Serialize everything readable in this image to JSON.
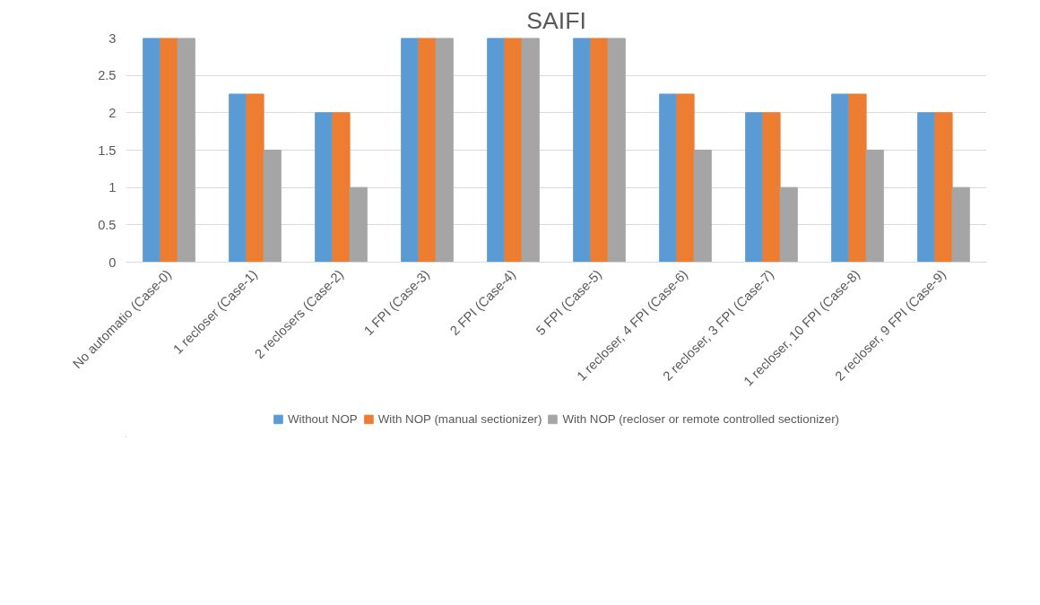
{
  "chart_data": {
    "type": "bar",
    "title": "SAIFI",
    "categories": [
      "No automatio (Case-0)",
      "1 recloser (Case-1)",
      "2 reclosers (Case-2)",
      "1 FPI (Case-3)",
      "2 FPI (Case-4)",
      "5 FPI (Case-5)",
      "1 recloser, 4 FPI (Case-6)",
      "2 recloser, 3 FPI (Case-7)",
      "1 recloser, 10 FPI (Case-8)",
      "2 recloser, 9 FPI (Case-9)"
    ],
    "series": [
      {
        "name": "Without NOP",
        "color": "#5b9bd5",
        "values": [
          3,
          2.25,
          2,
          3,
          3,
          3,
          2.25,
          2,
          2.25,
          2
        ]
      },
      {
        "name": "With NOP (manual sectionizer)",
        "color": "#ed7d31",
        "values": [
          3,
          2.25,
          2,
          3,
          3,
          3,
          2.25,
          2,
          2.25,
          2
        ]
      },
      {
        "name": "With NOP (recloser or remote controlled sectionizer)",
        "color": "#a5a5a5",
        "values": [
          3,
          1.5,
          1,
          3,
          3,
          3,
          1.5,
          1,
          1.5,
          1
        ]
      }
    ],
    "ylim": [
      0,
      3
    ],
    "yticks": [
      0,
      0.5,
      1,
      1.5,
      2,
      2.5,
      3
    ],
    "grid": "y",
    "legend": "bottom"
  }
}
